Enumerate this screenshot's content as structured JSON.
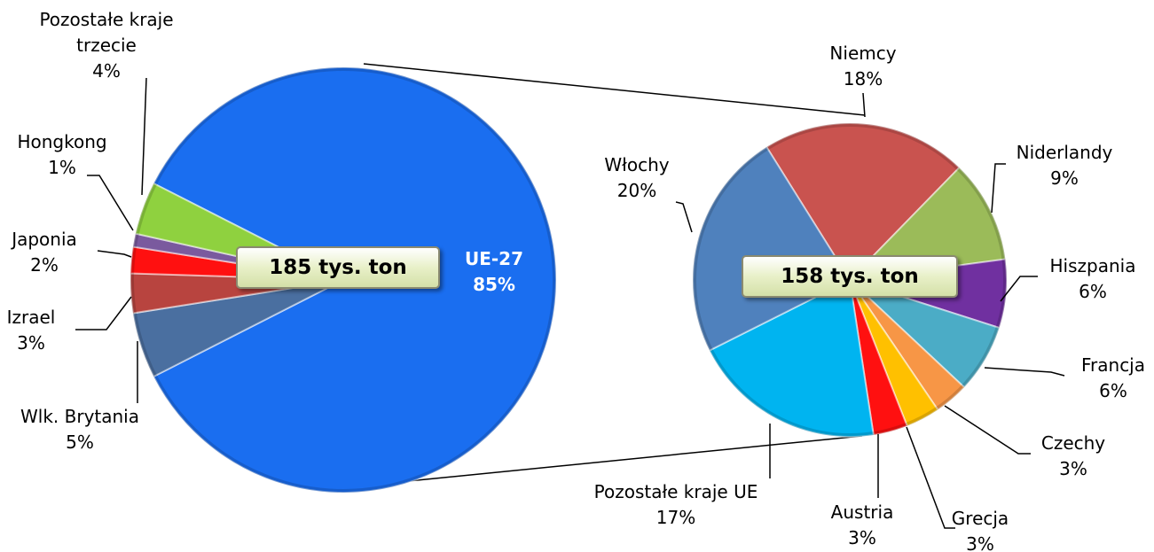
{
  "chart_data": [
    {
      "type": "pie",
      "annotation": "185 tys. ton",
      "categories": [
        "UE-27",
        "Wlk. Brytania",
        "Izrael",
        "Japonia",
        "Hongkong",
        "Pozostałe kraje trzecie"
      ],
      "values": [
        85,
        5,
        3,
        2,
        1,
        4
      ],
      "value_labels": [
        "85%",
        "5%",
        "3%",
        "2%",
        "1%",
        "4%"
      ],
      "colors": [
        "#1a6ef0",
        "#4a6fa0",
        "#b8443f",
        "#ff1010",
        "#7a5a9e",
        "#8fd13f"
      ]
    },
    {
      "type": "pie",
      "annotation": "158 tys. ton",
      "categories": [
        "Niemcy",
        "Niderlandy",
        "Hiszpania",
        "Francja",
        "Czechy",
        "Grecja",
        "Austria",
        "Pozostałe kraje UE",
        "Włochy"
      ],
      "values": [
        18,
        9,
        6,
        6,
        3,
        3,
        3,
        17,
        20
      ],
      "value_labels": [
        "18%",
        "9%",
        "6%",
        "6%",
        "3%",
        "3%",
        "3%",
        "17%",
        "20%"
      ],
      "colors": [
        "#c9534f",
        "#9bbb59",
        "#7030a0",
        "#4bacc6",
        "#f79646",
        "#ffc000",
        "#ff1010",
        "#00b4f0",
        "#4f81bd"
      ]
    }
  ]
}
